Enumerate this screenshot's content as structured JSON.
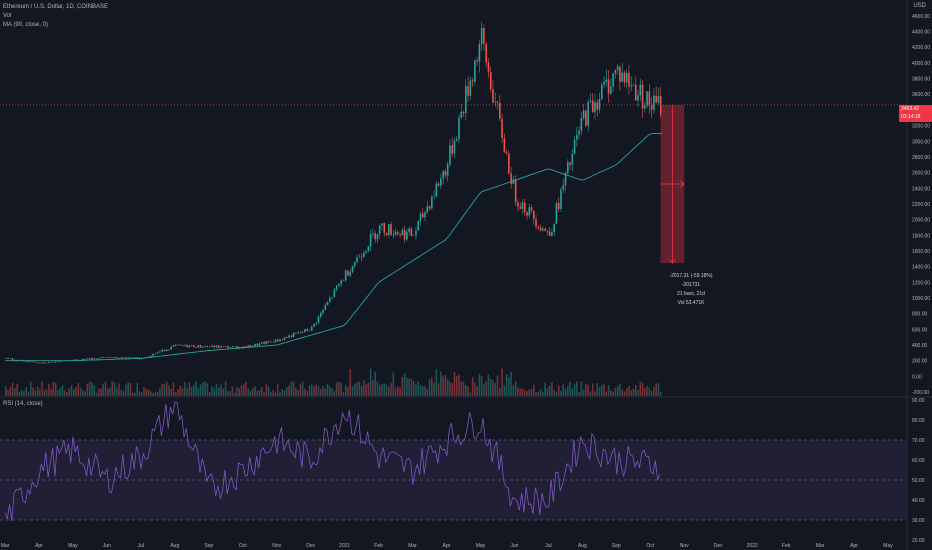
{
  "header": {
    "symbol_line": "Ethereum / U.S. Dollar, 1D, COINBASE",
    "vol_label": "Vol",
    "ma_label": "MA (90, close, 0)",
    "currency": "USD"
  },
  "rsi_label": "RSI (14, close)",
  "price_tag": {
    "line1": "3463.42",
    "line2": "03:14:18"
  },
  "measure": {
    "line1": "-2017.31 (-59.18%) -201731",
    "line2": "21 bars, 21d",
    "line3": "Vol 53.471K"
  },
  "colors": {
    "background": "#131722",
    "up": "#26a69a",
    "down": "#ef5350",
    "ma": "#26a69a",
    "rsi_line": "#7e57c2",
    "rsi_band": "#7e57c2",
    "measure": "#f23645",
    "grid": "#1e222d"
  },
  "chart_data": [
    {
      "type": "candlestick",
      "title": "Ethereum / U.S. Dollar, 1D, COINBASE",
      "x_tick_labels": [
        "Mar",
        "Apr",
        "May",
        "Jun",
        "Jul",
        "Aug",
        "Sep",
        "Oct",
        "Nov",
        "Dec",
        "2021",
        "Feb",
        "Mar",
        "Apr",
        "May",
        "Jun",
        "Jul",
        "Aug",
        "Sep",
        "Oct",
        "Nov",
        "Dec",
        "2022",
        "Feb",
        "Mar",
        "Apr",
        "May"
      ],
      "y_tick_labels": [
        4600,
        4400,
        4200,
        4000,
        3800,
        3600,
        3400,
        3200,
        3000,
        2800,
        2600,
        2400,
        2200,
        2000,
        1800,
        1600,
        1400,
        1200,
        1000,
        800,
        600,
        400,
        200,
        0,
        -200
      ],
      "ylim": [
        -250,
        4700
      ],
      "grid": false,
      "series": [
        {
          "name": "Close",
          "points": [
            [
              "Mar 2020",
              230
            ],
            [
              "Apr 2020",
              170
            ],
            [
              "May 2020",
              210
            ],
            [
              "Jun 2020",
              240
            ],
            [
              "Jul 2020",
              230
            ],
            [
              "Aug 2020",
              390
            ],
            [
              "Sep 2020",
              380
            ],
            [
              "Oct 2020",
              370
            ],
            [
              "Nov 2020",
              460
            ],
            [
              "Dec 2020",
              610
            ],
            [
              "Jan 2021",
              1300
            ],
            [
              "Feb 2021",
              1900
            ],
            [
              "Mar 2021",
              1800
            ],
            [
              "Apr 2021",
              2700
            ],
            [
              "May 2021",
              4300
            ],
            [
              "Jun 2021",
              2300
            ],
            [
              "Jul 2021",
              1800
            ],
            [
              "Aug 2021",
              3300
            ],
            [
              "Sep 2021",
              3900
            ],
            [
              "Oct 2021",
              3463
            ]
          ]
        },
        {
          "name": "MA (90, close, 0)",
          "points": [
            [
              "Mar 2020",
              200
            ],
            [
              "May 2020",
              200
            ],
            [
              "Jul 2020",
              230
            ],
            [
              "Sep 2020",
              330
            ],
            [
              "Nov 2020",
              400
            ],
            [
              "Jan 2021",
              650
            ],
            [
              "Feb 2021",
              1200
            ],
            [
              "Apr 2021",
              1750
            ],
            [
              "May 2021",
              2350
            ],
            [
              "Jun 2021",
              2500
            ],
            [
              "Jul 2021",
              2650
            ],
            [
              "Aug 2021",
              2500
            ],
            [
              "Sep 2021",
              2700
            ],
            [
              "Oct 2021",
              3100
            ]
          ]
        }
      ]
    },
    {
      "type": "line",
      "title": "RSI (14, close)",
      "y_tick_labels": [
        90,
        80,
        70,
        60,
        50,
        40,
        30,
        20
      ],
      "ylim": [
        20,
        90
      ],
      "band": [
        30,
        70
      ],
      "series": [
        {
          "name": "RSI",
          "points": [
            [
              "Mar 2020",
              30
            ],
            [
              "Apr 2020",
              55
            ],
            [
              "May 2020",
              65
            ],
            [
              "Jun 2020",
              50
            ],
            [
              "Jul 2020",
              62
            ],
            [
              "Aug 2020",
              88
            ],
            [
              "Sep 2020",
              45
            ],
            [
              "Oct 2020",
              55
            ],
            [
              "Nov 2020",
              70
            ],
            [
              "Dec 2020",
              60
            ],
            [
              "Jan 2021",
              85
            ],
            [
              "Feb 2021",
              62
            ],
            [
              "Mar 2021",
              55
            ],
            [
              "Apr 2021",
              70
            ],
            [
              "May 2021",
              80
            ],
            [
              "Jun 2021",
              40
            ],
            [
              "Jul 2021",
              40
            ],
            [
              "Aug 2021",
              70
            ],
            [
              "Sep 2021",
              60
            ],
            [
              "Oct 2021",
              58
            ]
          ]
        }
      ]
    }
  ]
}
